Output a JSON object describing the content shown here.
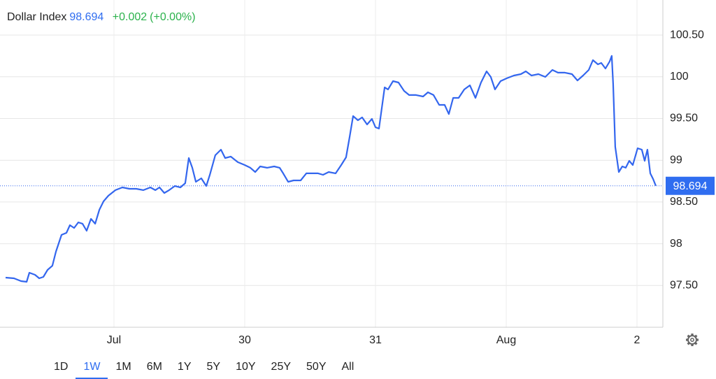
{
  "chart_data": {
    "type": "line",
    "series": [
      {
        "name": "Dollar Index",
        "color": "#3366ee",
        "x": [
          0.171,
          0.235,
          0.289,
          0.332,
          0.353,
          0.396,
          0.428,
          0.46,
          0.492,
          0.529,
          0.556,
          0.599,
          0.636,
          0.663,
          0.695,
          0.727,
          0.759,
          0.791,
          0.824,
          0.856,
          0.888,
          0.92,
          0.957,
          1.011,
          1.064,
          1.118,
          1.171,
          1.225,
          1.278,
          1.316,
          1.348,
          1.385,
          1.422,
          1.465,
          1.508,
          1.545,
          1.572,
          1.599,
          1.626,
          1.668,
          1.706,
          1.733,
          1.775,
          1.818,
          1.85,
          1.893,
          1.947,
          2.0,
          2.043,
          2.08,
          2.118,
          2.171,
          2.225,
          2.267,
          2.294,
          2.332,
          2.374,
          2.428,
          2.471,
          2.513,
          2.561,
          2.599,
          2.642,
          2.695,
          2.738,
          2.775,
          2.802,
          2.829,
          2.866,
          2.898,
          2.936,
          2.973,
          3.0,
          3.027,
          3.07,
          3.096,
          3.134,
          3.176,
          3.219,
          3.257,
          3.31,
          3.364,
          3.401,
          3.444,
          3.487,
          3.529,
          3.561,
          3.594,
          3.636,
          3.679,
          3.722,
          3.765,
          3.807,
          3.85,
          3.882,
          3.914,
          3.957,
          4.005,
          4.059,
          4.112,
          4.15,
          4.193,
          4.246,
          4.299,
          4.353,
          4.396,
          4.449,
          4.503,
          4.545,
          4.588,
          4.631,
          4.663,
          4.701,
          4.727,
          4.759,
          4.791,
          4.807,
          4.818,
          4.834,
          4.861,
          4.888,
          4.914,
          4.941,
          4.968,
          5.005,
          5.037,
          5.059,
          5.08,
          5.102,
          5.123,
          5.144
        ],
        "values": [
          97.595,
          97.586,
          97.553,
          97.544,
          97.653,
          97.628,
          97.586,
          97.603,
          97.687,
          97.737,
          97.905,
          98.106,
          98.131,
          98.223,
          98.189,
          98.256,
          98.24,
          98.156,
          98.298,
          98.24,
          98.407,
          98.508,
          98.575,
          98.642,
          98.675,
          98.658,
          98.658,
          98.642,
          98.675,
          98.642,
          98.675,
          98.608,
          98.642,
          98.692,
          98.675,
          98.725,
          99.027,
          98.91,
          98.742,
          98.784,
          98.692,
          98.826,
          99.06,
          99.127,
          99.027,
          99.044,
          98.977,
          98.943,
          98.91,
          98.859,
          98.926,
          98.91,
          98.926,
          98.91,
          98.843,
          98.742,
          98.759,
          98.759,
          98.843,
          98.843,
          98.843,
          98.826,
          98.859,
          98.843,
          98.943,
          99.035,
          99.278,
          99.529,
          99.479,
          99.513,
          99.429,
          99.496,
          99.395,
          99.379,
          99.873,
          99.848,
          99.948,
          99.931,
          99.831,
          99.781,
          99.781,
          99.764,
          99.814,
          99.781,
          99.663,
          99.663,
          99.554,
          99.747,
          99.747,
          99.848,
          99.898,
          99.747,
          99.931,
          100.065,
          99.998,
          99.848,
          99.948,
          99.982,
          100.015,
          100.032,
          100.065,
          100.015,
          100.032,
          99.998,
          100.082,
          100.049,
          100.049,
          100.032,
          99.956,
          100.015,
          100.082,
          100.199,
          100.149,
          100.166,
          100.099,
          100.183,
          100.25,
          99.915,
          99.161,
          98.859,
          98.926,
          98.91,
          98.993,
          98.943,
          99.144,
          99.127,
          98.993,
          99.127,
          98.843,
          98.776,
          98.694
        ]
      }
    ],
    "last_price": 98.694,
    "change": "+0.002",
    "change_pct": "(+0.00%)",
    "ylim": [
      97,
      100.85
    ],
    "yticks": [
      {
        "value": 97.5,
        "label": "97.50"
      },
      98,
      {
        "value": 98.5,
        "label": "98.50"
      },
      99,
      {
        "value": 99.5,
        "label": "99.50"
      },
      100,
      {
        "value": 100.5,
        "label": "100.50"
      }
    ],
    "xlim": [
      0.171,
      5.198
    ],
    "xticks": [
      {
        "value": 1,
        "label": "Jul"
      },
      {
        "value": 2,
        "label": "30"
      },
      {
        "value": 3,
        "label": "31"
      },
      {
        "value": 4,
        "label": "Aug"
      },
      {
        "value": 5,
        "label": "2"
      }
    ],
    "grid": true
  },
  "ranges": [
    "1D",
    "1W",
    "1M",
    "6M",
    "1Y",
    "5Y",
    "10Y",
    "25Y",
    "50Y",
    "All"
  ],
  "selected_range": 1
}
